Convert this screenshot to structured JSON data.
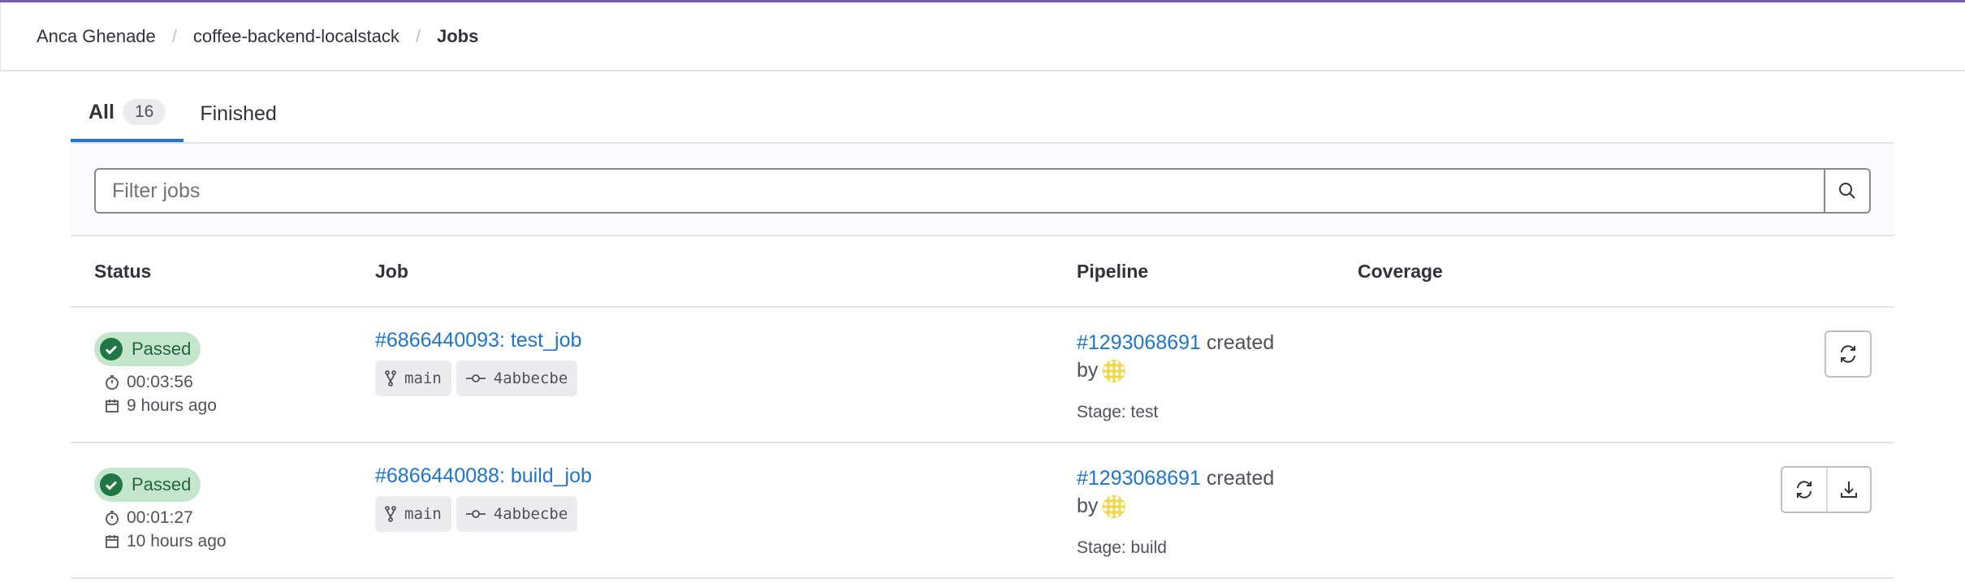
{
  "breadcrumb": [
    "Anca Ghenade",
    "coffee-backend-localstack",
    "Jobs"
  ],
  "tabs": [
    {
      "label": "All",
      "count": "16"
    },
    {
      "label": "Finished"
    }
  ],
  "filter": {
    "placeholder": "Filter jobs",
    "value": ""
  },
  "columns": {
    "status": "Status",
    "job": "Job",
    "pipeline": "Pipeline",
    "coverage": "Coverage"
  },
  "rows": [
    {
      "status": "Passed",
      "duration": "00:03:56",
      "finished": "9 hours ago",
      "job": "#6866440093: test_job",
      "branch": "main",
      "commit": "4abbecbe",
      "pipeline": "#1293068691",
      "created": "created",
      "by": "by",
      "stage": "Stage: test",
      "actions": [
        "retry-icon"
      ]
    },
    {
      "status": "Passed",
      "duration": "00:01:27",
      "finished": "10 hours ago",
      "job": "#6866440088: build_job",
      "branch": "main",
      "commit": "4abbecbe",
      "pipeline": "#1293068691",
      "created": "created",
      "by": "by",
      "stage": "Stage: build",
      "actions": [
        "retry-icon",
        "download-icon"
      ]
    }
  ],
  "colors": {
    "accent": "#1f75cb",
    "success": "#108548",
    "success_bg": "#c3e6cd",
    "topbar": "#7b5eb0"
  }
}
